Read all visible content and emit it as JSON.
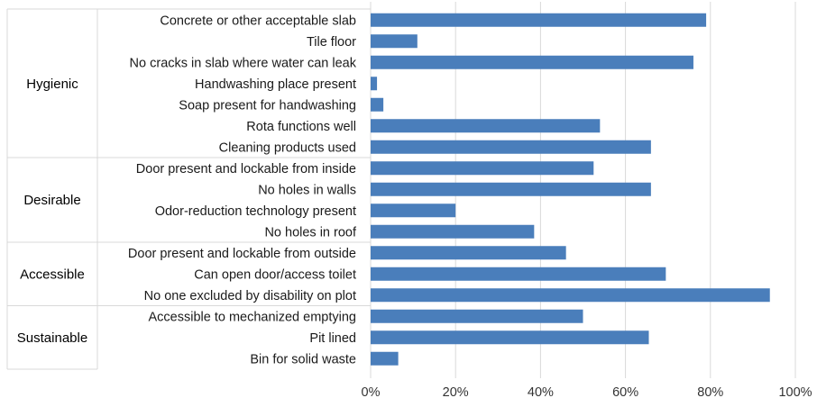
{
  "chart_data": {
    "type": "bar",
    "orientation": "horizontal",
    "title": "",
    "xlabel": "",
    "ylabel": "",
    "xlim": [
      0,
      100
    ],
    "grid": true,
    "legend": "none",
    "bar_color": "#4a7ebb",
    "grid_color": "#d9d9d9",
    "x_ticks": [
      "0%",
      "20%",
      "40%",
      "60%",
      "80%",
      "100%"
    ],
    "groups": [
      {
        "name": "Hygienic",
        "start": 0,
        "count": 7
      },
      {
        "name": "Desirable",
        "start": 7,
        "count": 4
      },
      {
        "name": "Accessible",
        "start": 11,
        "count": 3
      },
      {
        "name": "Sustainable",
        "start": 14,
        "count": 3
      }
    ],
    "categories": [
      "Concrete or other acceptable slab",
      "Tile floor",
      "No cracks in slab where water can leak",
      "Handwashing place present",
      "Soap present for handwashing",
      "Rota functions well",
      "Cleaning products used",
      "Door present and lockable from inside",
      "No holes in walls",
      "Odor-reduction technology present",
      "No holes in roof",
      "Door present and lockable from outside",
      "Can open door/access toilet",
      "No one excluded by disability on plot",
      "Accessible to mechanized emptying",
      "Pit lined",
      "Bin for solid waste"
    ],
    "values": [
      79,
      11,
      76,
      1.5,
      3,
      54,
      66,
      52.5,
      66,
      20,
      38.5,
      46,
      69.5,
      94,
      50,
      65.5,
      6.5
    ]
  }
}
